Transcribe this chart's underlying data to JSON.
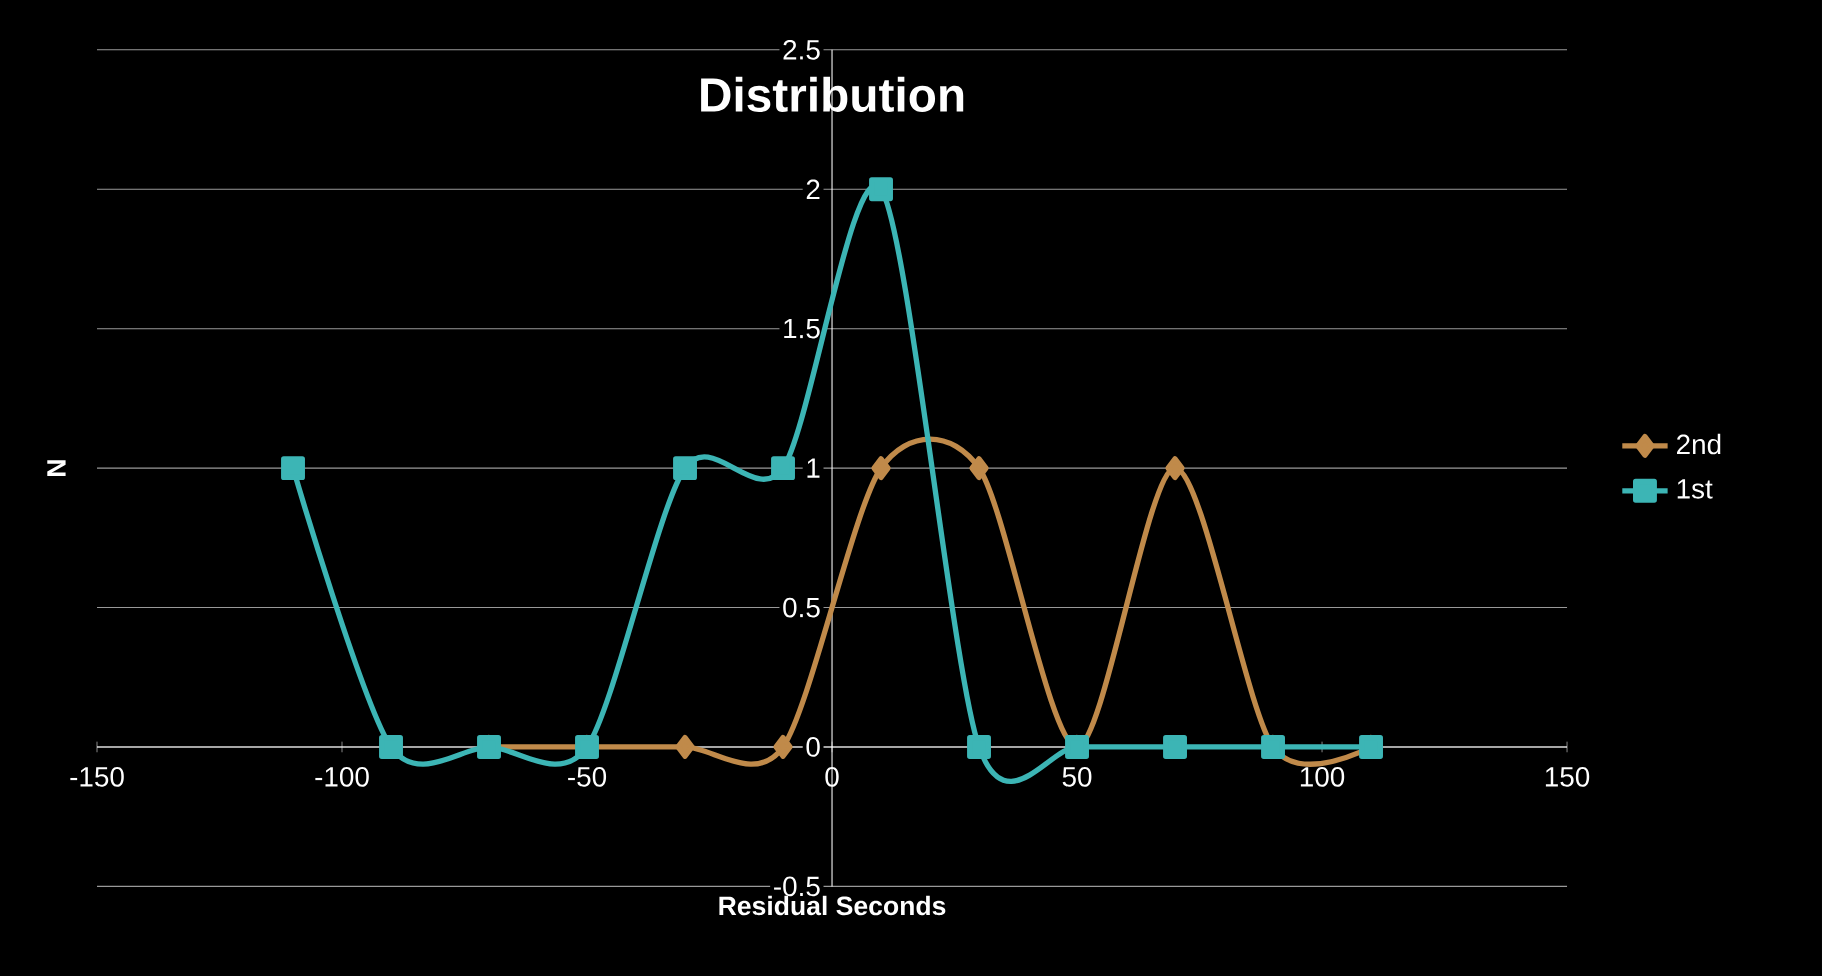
{
  "chart_data": {
    "type": "line",
    "title": "Distribution",
    "xlabel": "Residual Seconds",
    "ylabel": "N",
    "xlim": [
      -150,
      150
    ],
    "xticks": [
      -150,
      -100,
      -50,
      0,
      50,
      100,
      150
    ],
    "ylim": [
      -0.5,
      2.5
    ],
    "yticks": [
      -0.5,
      0,
      0.5,
      1,
      1.5,
      2,
      2.5
    ],
    "grid": "y",
    "legend": "right",
    "series": [
      {
        "name": "2nd",
        "color": "#c08a4a",
        "marker": "diamond",
        "x": [
          -70,
          -50,
          -30,
          -10,
          10,
          30,
          50,
          70,
          90,
          110
        ],
        "values": [
          0,
          0,
          0,
          0,
          1,
          1,
          0,
          1,
          0,
          0
        ]
      },
      {
        "name": "1st",
        "color": "#3cb5b5",
        "marker": "square",
        "x": [
          -110,
          -90,
          -70,
          -50,
          -30,
          -10,
          10,
          30,
          50,
          70,
          90,
          110
        ],
        "values": [
          1,
          0,
          0,
          0,
          1,
          1,
          2,
          0,
          0,
          0,
          0,
          0
        ]
      }
    ]
  }
}
